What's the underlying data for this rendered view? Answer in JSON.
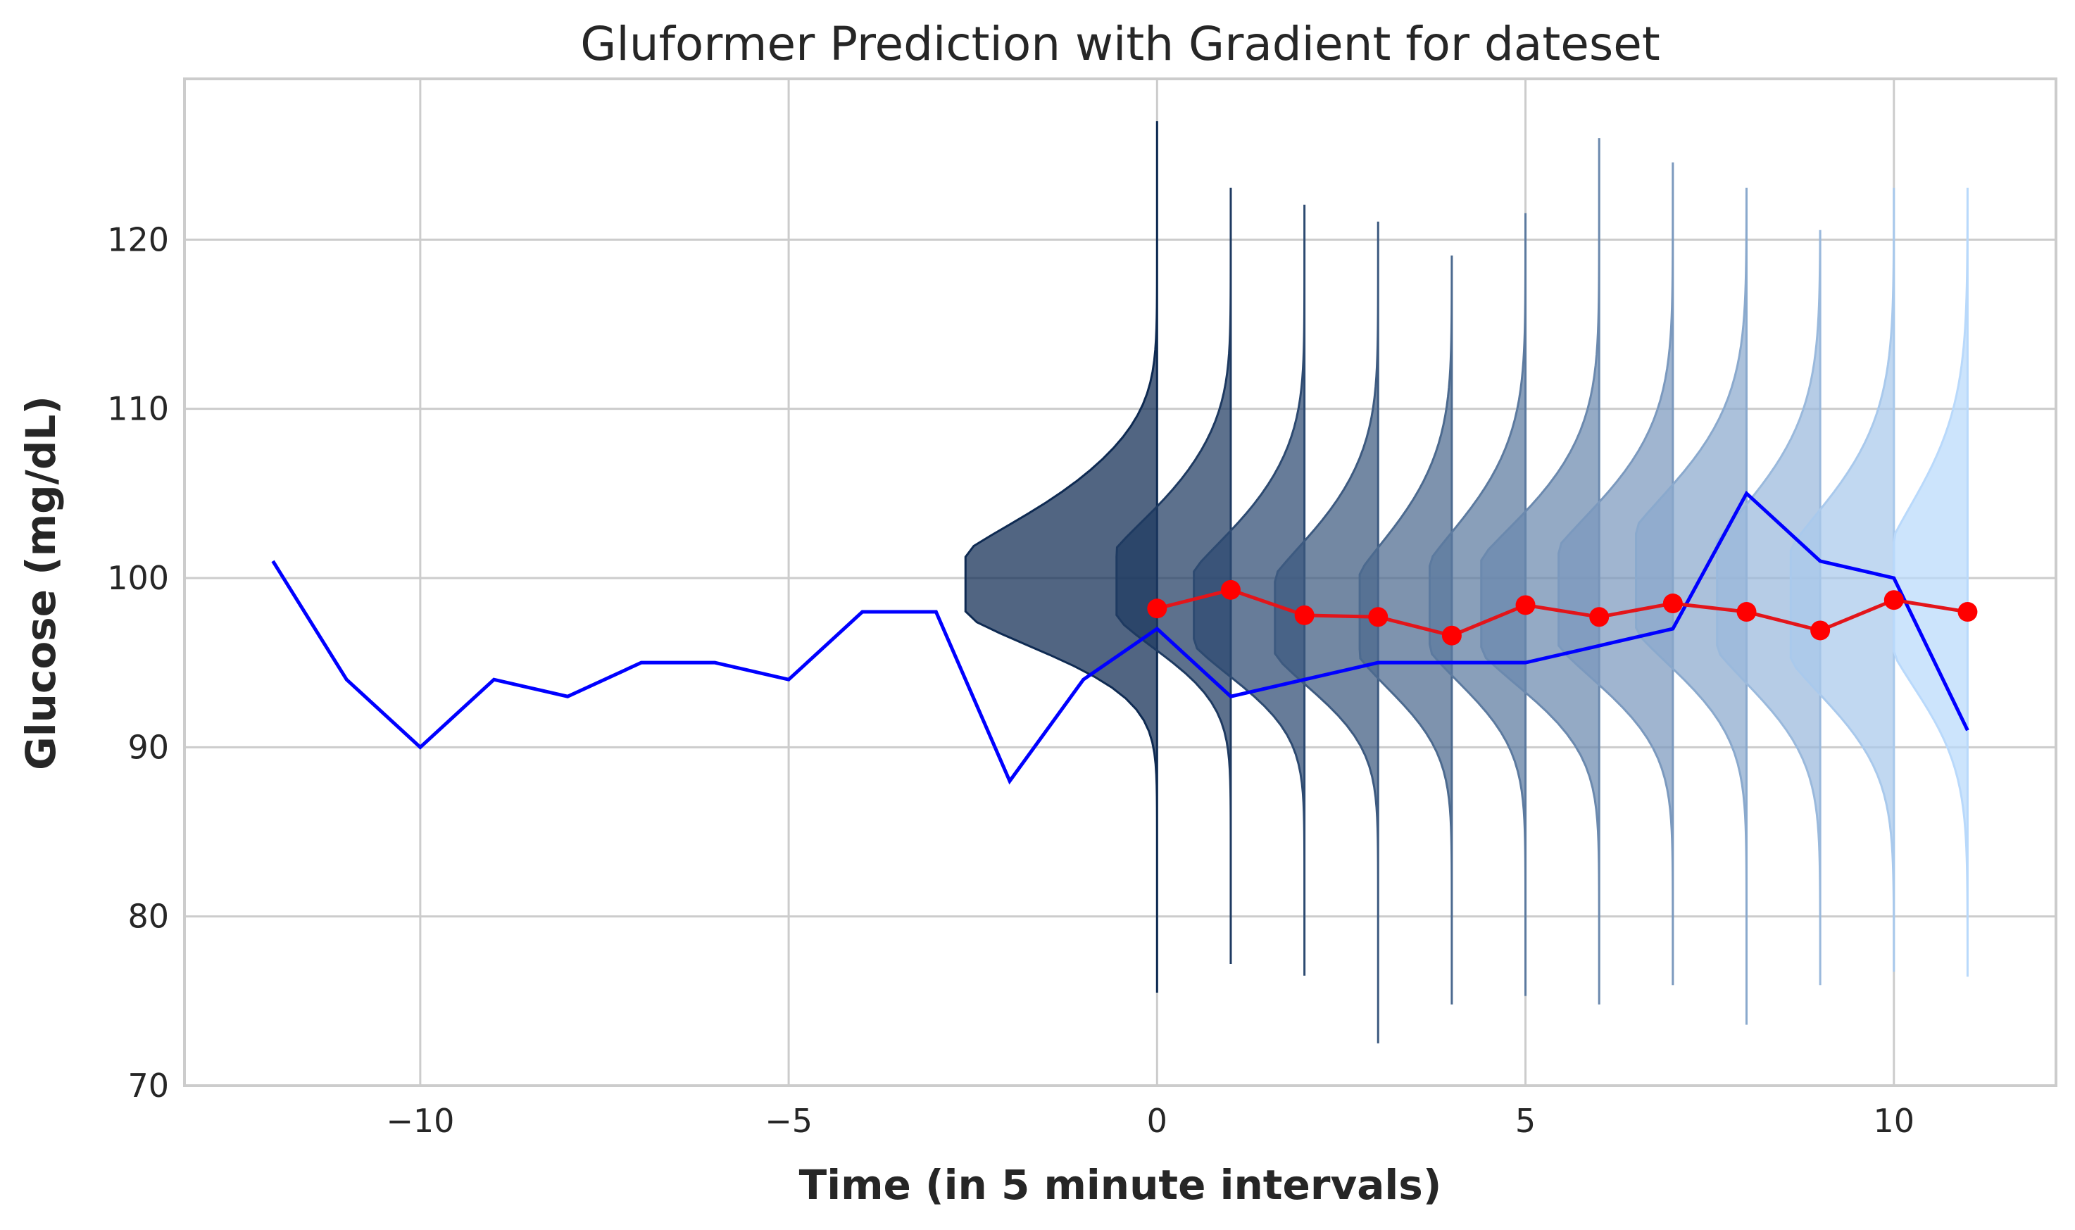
{
  "chart_data": {
    "type": "line",
    "title": "Gluformer Prediction with Gradient for dateset",
    "xlabel": "Time (in 5 minute intervals)",
    "ylabel": "Glucose (mg/dL)",
    "xlim": [
      -13.2,
      12.2
    ],
    "ylim": [
      70,
      129.5
    ],
    "x_ticks": [
      -10,
      -5,
      0,
      5,
      10
    ],
    "x_tick_labels": [
      "−10",
      "−5",
      "0",
      "5",
      "10"
    ],
    "y_ticks": [
      70,
      80,
      90,
      100,
      110,
      120
    ],
    "y_tick_labels": [
      "70",
      "80",
      "90",
      "100",
      "110",
      "120"
    ],
    "grid": true,
    "legend": "none",
    "colors": {
      "true_line": "#0000ff",
      "prediction_line": "#e3151a",
      "prediction_marker": "#ff0000",
      "density_dark": "#0e2a52",
      "density_light": "#b9d9fb"
    },
    "series": [
      {
        "style": "blue-line",
        "x": [
          -12,
          -11,
          -10,
          -9,
          -8,
          -7,
          -6,
          -5,
          -4,
          -3,
          -2,
          -1,
          0,
          1,
          2,
          3,
          4,
          5,
          6,
          7,
          8,
          9,
          10,
          11
        ],
        "y": [
          101,
          94,
          90,
          94,
          93,
          95,
          95,
          94,
          98,
          98,
          88,
          94,
          97,
          93,
          94,
          95,
          95,
          95,
          96,
          97,
          105,
          101,
          100,
          91
        ]
      },
      {
        "style": "red-line-markers",
        "x": [
          0,
          1,
          2,
          3,
          4,
          5,
          6,
          7,
          8,
          9,
          10,
          11
        ],
        "y": [
          98.2,
          99.3,
          97.8,
          97.7,
          96.6,
          98.4,
          97.7,
          98.5,
          98.0,
          96.9,
          98.7,
          98.0
        ]
      }
    ],
    "densities": [
      {
        "x": 0,
        "min": 75.5,
        "max": 127,
        "mode": 99,
        "width": 2.6
      },
      {
        "x": 1,
        "min": 77.2,
        "max": 123,
        "mode": 99,
        "width": 1.55
      },
      {
        "x": 2,
        "min": 76.5,
        "max": 122,
        "mode": 97.5,
        "width": 1.5
      },
      {
        "x": 3,
        "min": 72.5,
        "max": 121,
        "mode": 97,
        "width": 1.4
      },
      {
        "x": 4,
        "min": 74.8,
        "max": 119,
        "mode": 97,
        "width": 1.25
      },
      {
        "x": 5,
        "min": 75.3,
        "max": 121.5,
        "mode": 97.5,
        "width": 1.3
      },
      {
        "x": 6,
        "min": 74.8,
        "max": 126,
        "mode": 97.5,
        "width": 1.6
      },
      {
        "x": 7,
        "min": 76,
        "max": 124.5,
        "mode": 98,
        "width": 1.55
      },
      {
        "x": 8,
        "min": 73.6,
        "max": 123,
        "mode": 99,
        "width": 1.5
      },
      {
        "x": 9,
        "min": 76,
        "max": 120.5,
        "mode": 98,
        "width": 1.4
      },
      {
        "x": 10,
        "min": 76.8,
        "max": 123,
        "mode": 97.5,
        "width": 1.4
      },
      {
        "x": 11,
        "min": 76.5,
        "max": 123,
        "mode": 98,
        "width": 1.0
      }
    ]
  }
}
